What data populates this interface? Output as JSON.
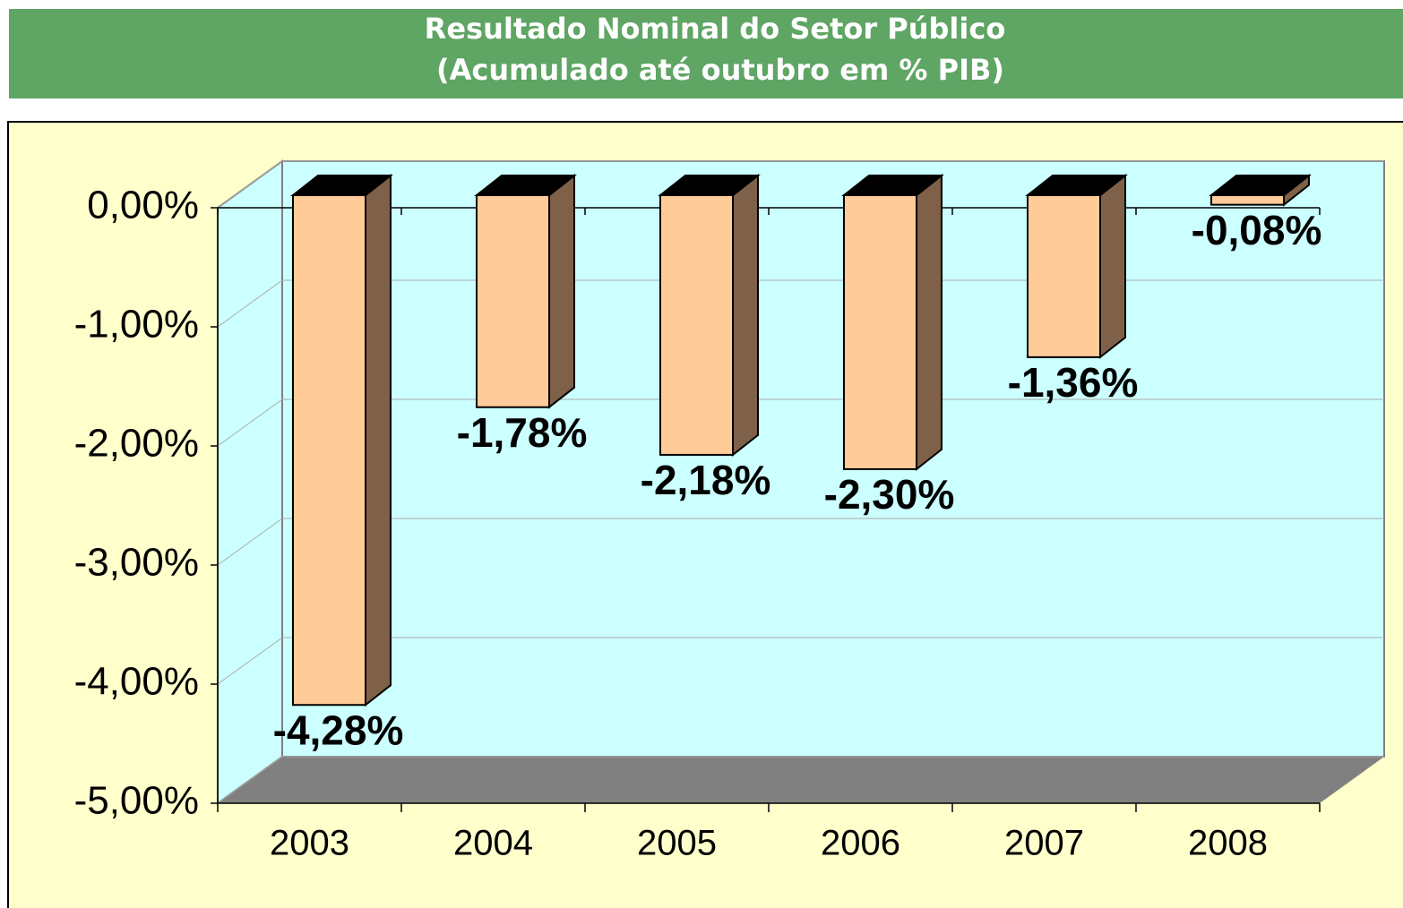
{
  "chart_data": {
    "type": "bar3d",
    "title": "Resultado Nominal do Setor Público",
    "subtitle": "(Acumulado até outubro em % PIB)",
    "categories": [
      "2003",
      "2004",
      "2005",
      "2006",
      "2007",
      "2008"
    ],
    "values": [
      -4.28,
      -1.78,
      -2.18,
      -2.3,
      -1.36,
      -0.08
    ],
    "value_labels": [
      "-4,28%",
      "-1,78%",
      "-2,18%",
      "-2,30%",
      "-1,36%",
      "-0,08%"
    ],
    "color": "#ffcc99",
    "ylim": [
      -5,
      0
    ],
    "yticks": [
      {
        "value": 0,
        "label": "0,00%"
      },
      {
        "value": -1,
        "label": "-1,00%"
      },
      {
        "value": -2,
        "label": "-2,00%"
      },
      {
        "value": -3,
        "label": "-3,00%"
      },
      {
        "value": -4,
        "label": "-4,00%"
      },
      {
        "value": -5,
        "label": "-5,00%"
      }
    ],
    "grid": true
  }
}
